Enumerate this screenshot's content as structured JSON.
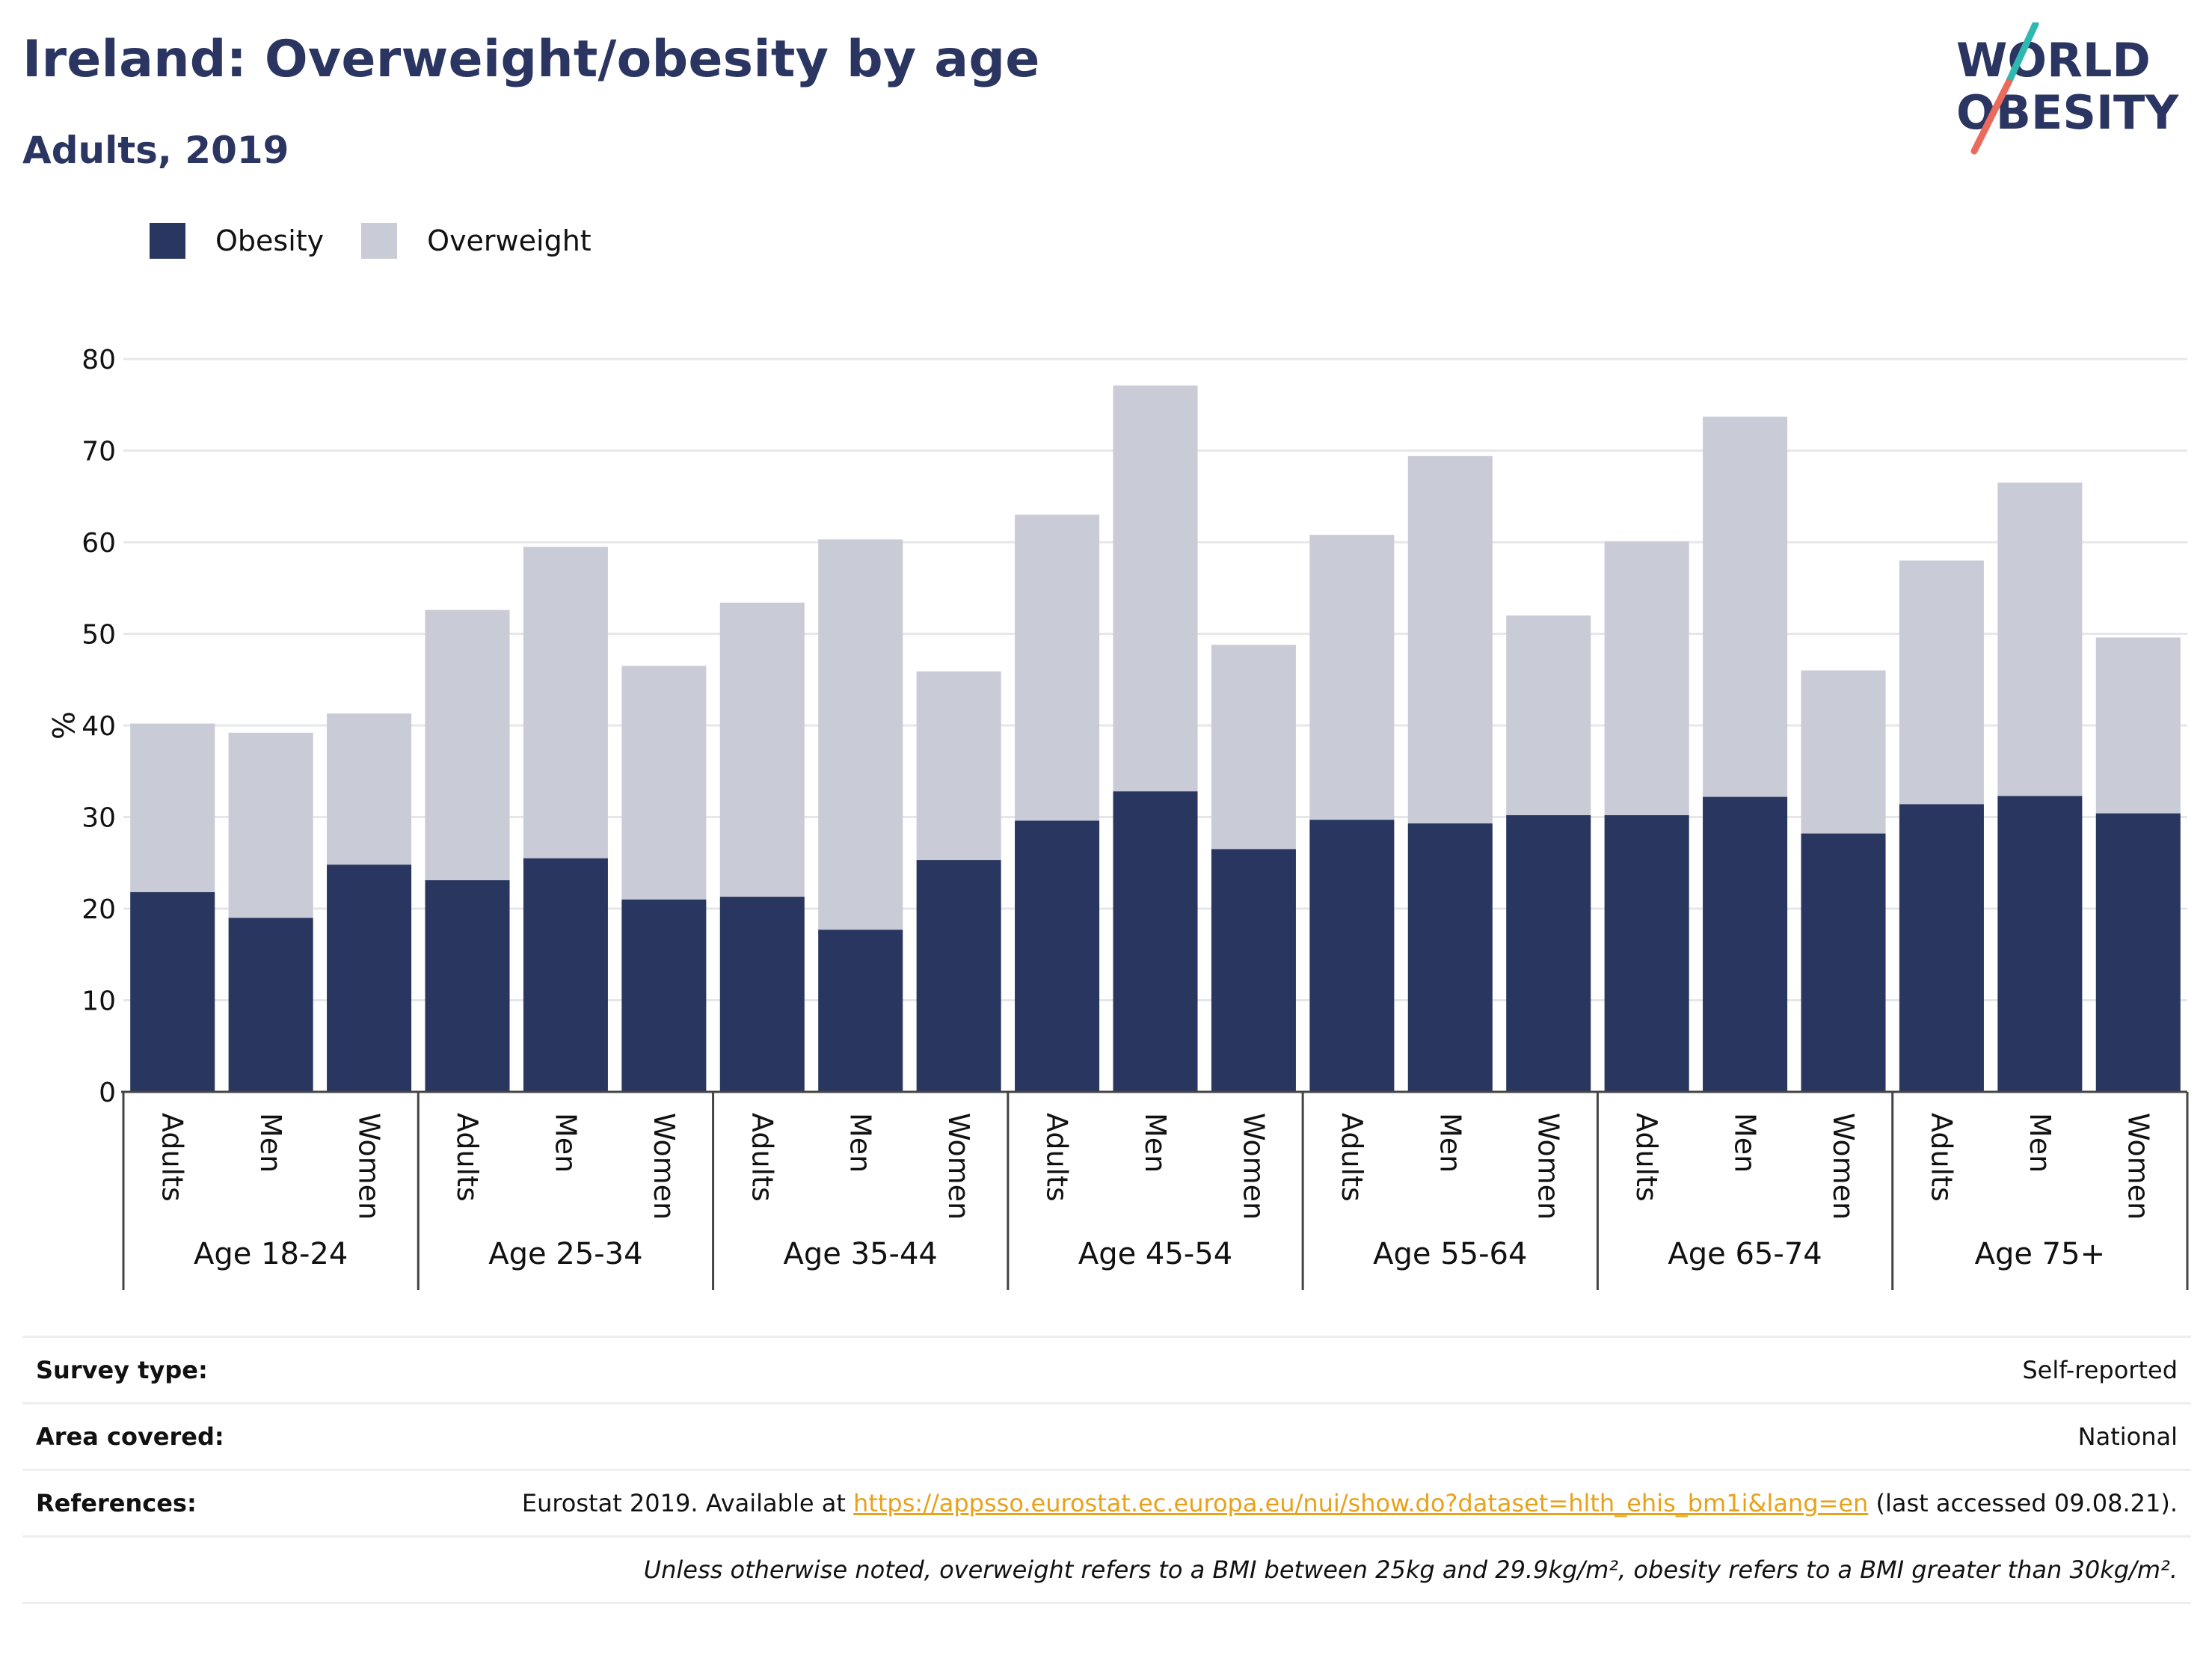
{
  "header": {
    "title": "Ireland: Overweight/obesity by age",
    "subtitle": "Adults, 2019",
    "logo_line1": "WORLD",
    "logo_line2": "OBESITY"
  },
  "colors": {
    "obesity": "#29365f",
    "overweight": "#c9cbd6",
    "title": "#2b3561",
    "logo_teal": "#2fb8b0",
    "logo_coral": "#ea6a5c",
    "link": "#e8a21a"
  },
  "chart_data": {
    "type": "bar",
    "stacked": true,
    "ylabel": "%",
    "ylim": [
      0,
      80
    ],
    "yticks": [
      0,
      10,
      20,
      30,
      40,
      50,
      60,
      70,
      80
    ],
    "grid": true,
    "legend_position": "top-left",
    "groups": [
      "Age 18-24",
      "Age 25-34",
      "Age 35-44",
      "Age 45-54",
      "Age 55-64",
      "Age 65-74",
      "Age 75+"
    ],
    "subcategories": [
      "Adults",
      "Men",
      "Women"
    ],
    "series": [
      {
        "name": "Obesity",
        "values": [
          21.8,
          19.0,
          24.8,
          23.1,
          25.5,
          21.0,
          21.3,
          17.7,
          25.3,
          29.6,
          32.8,
          26.5,
          29.7,
          29.3,
          30.2,
          30.2,
          32.2,
          28.2,
          31.4,
          32.3,
          30.4
        ]
      },
      {
        "name": "Overweight",
        "values": [
          18.4,
          20.2,
          16.5,
          29.5,
          34.0,
          25.5,
          32.1,
          42.6,
          20.6,
          33.4,
          44.3,
          22.3,
          31.1,
          40.1,
          21.8,
          29.9,
          41.5,
          17.8,
          26.6,
          34.2,
          19.2
        ]
      }
    ]
  },
  "legend": {
    "obesity": "Obesity",
    "overweight": "Overweight"
  },
  "info": {
    "survey_label": "Survey type:",
    "survey_value": "Self-reported",
    "area_label": "Area covered:",
    "area_value": "National",
    "references_label": "References:",
    "references_prefix": "Eurostat 2019. Available at ",
    "references_link": "https://appsso.eurostat.ec.europa.eu/nui/show.do?dataset=hlth_ehis_bm1i&lang=en",
    "references_suffix": " (last accessed 09.08.21).",
    "note": "Unless otherwise noted, overweight refers to a BMI between 25kg and 29.9kg/m², obesity refers to a BMI greater than 30kg/m²."
  }
}
